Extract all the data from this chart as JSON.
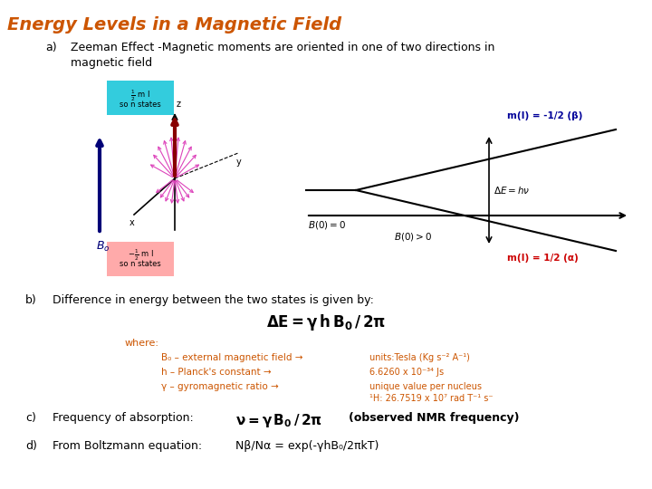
{
  "title": "Energy Levels in a Magnetic Field",
  "title_color": "#cc5500",
  "title_fontsize": 14,
  "background_color": "#ffffff",
  "section_a_label": "a)",
  "section_a_text": "Zeeman Effect -Magnetic moments are oriented in one of two directions in\nmagnetic field",
  "section_b_label": "b)",
  "section_b_text": "Difference in energy between the two states is given by:",
  "where_text": "where:",
  "param1_left": "B₀ – external magnetic field →",
  "param1_right": "units:Tesla (Kg s⁻² A⁻¹)",
  "param2_left": "h – Planck's constant →",
  "param2_right": "6.6260 x 10⁻³⁴ Js",
  "param3_left": "γ – gyromagnetic ratio →",
  "param3_right_line1": "unique value per nucleus",
  "param3_right_line2": "¹H: 26.7519 x 10⁷ rad T⁻¹ s⁻",
  "section_c_label": "c)",
  "section_c_left": "Frequency of absorption:",
  "section_c_right": "(observed NMR frequency)",
  "section_d_label": "d)",
  "section_d_left": "From Boltzmann equation:",
  "section_d_right": "Nβ/Nα = exp(-γhB₀/2πkT)",
  "cyan_box_color": "#33ccdd",
  "pink_box_color": "#ffaaaa",
  "mi_minus_label": "m(I) = -1/2 (β)",
  "mi_minus_color": "#000099",
  "mi_plus_label": "m(I) = 1/2 (α)",
  "mi_plus_color": "#cc0000",
  "orange_color": "#cc5500",
  "dark_blue_color": "#000077",
  "text_color": "#000000"
}
